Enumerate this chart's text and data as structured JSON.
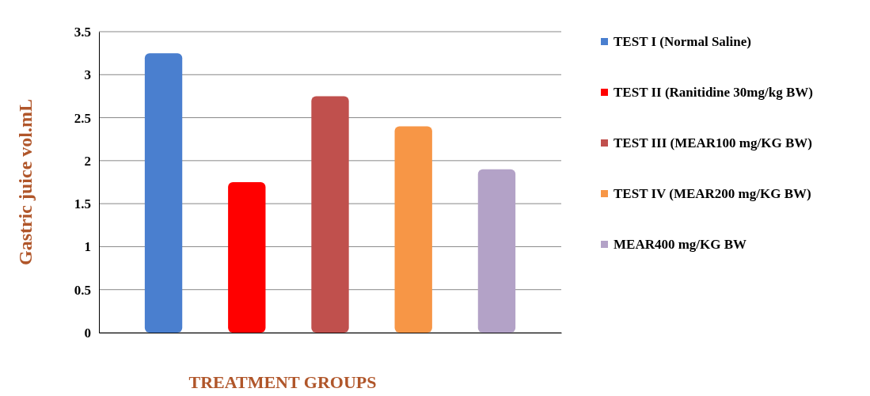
{
  "chart_data": {
    "type": "bar",
    "xlabel": "TREATMENT GROUPS",
    "ylabel": "Gastric juice vol.mL",
    "categories": [
      null,
      null,
      null,
      null,
      null
    ],
    "series": [
      {
        "name": "TEST I (Normal Saline)",
        "color": "#4a7fcf",
        "values": [
          3.25,
          null,
          null,
          null,
          null
        ]
      },
      {
        "name": "TEST II (Ranitidine 30mg/kg BW)",
        "color": "#ff0000",
        "values": [
          null,
          1.75,
          null,
          null,
          null
        ]
      },
      {
        "name": "TEST III (MEAR100 mg/KG BW)",
        "color": "#c0504d",
        "values": [
          null,
          null,
          2.75,
          null,
          null
        ]
      },
      {
        "name": "TEST IV (MEAR200 mg/KG BW)",
        "color": "#f79646",
        "values": [
          null,
          null,
          null,
          2.4,
          null
        ]
      },
      {
        "name": "MEAR400 mg/KG BW",
        "color": "#b3a2c7",
        "values": [
          null,
          null,
          null,
          null,
          1.9
        ]
      }
    ],
    "ylim": [
      0,
      3.5
    ],
    "yticks": [
      0,
      0.5,
      1,
      1.5,
      2,
      2.5,
      3,
      3.5
    ],
    "grid": "y",
    "legend": "right"
  }
}
